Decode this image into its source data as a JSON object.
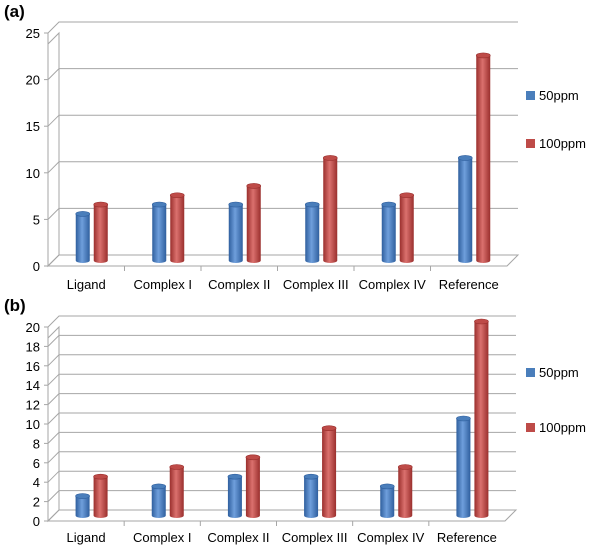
{
  "chart_data": [
    {
      "type": "bar",
      "panel_label": "(a)",
      "categories": [
        "Ligand",
        "Complex I",
        "Complex II",
        "Complex III",
        "Complex IV",
        "Reference"
      ],
      "series": [
        {
          "name": "50ppm",
          "values": [
            5,
            6,
            6,
            6,
            6,
            11
          ],
          "color": "#4a7ebb"
        },
        {
          "name": "100ppm",
          "values": [
            6,
            7,
            8,
            11,
            7,
            22
          ],
          "color": "#be4b48"
        }
      ],
      "ylim": [
        0,
        25
      ],
      "yticks": [
        0,
        5,
        10,
        15,
        20,
        25
      ],
      "grid": true,
      "legend": "right"
    },
    {
      "type": "bar",
      "panel_label": "(b)",
      "categories": [
        "Ligand",
        "Complex I",
        "Complex II",
        "Complex III",
        "Complex IV",
        "Reference"
      ],
      "series": [
        {
          "name": "50ppm",
          "values": [
            2,
            3,
            4,
            4,
            3,
            10
          ],
          "color": "#4a7ebb"
        },
        {
          "name": "100ppm",
          "values": [
            4,
            5,
            6,
            9,
            5,
            20
          ],
          "color": "#be4b48"
        }
      ],
      "ylim": [
        0,
        20
      ],
      "yticks": [
        0,
        2,
        4,
        6,
        8,
        10,
        12,
        14,
        16,
        18,
        20
      ],
      "grid": true,
      "legend": "right"
    }
  ]
}
